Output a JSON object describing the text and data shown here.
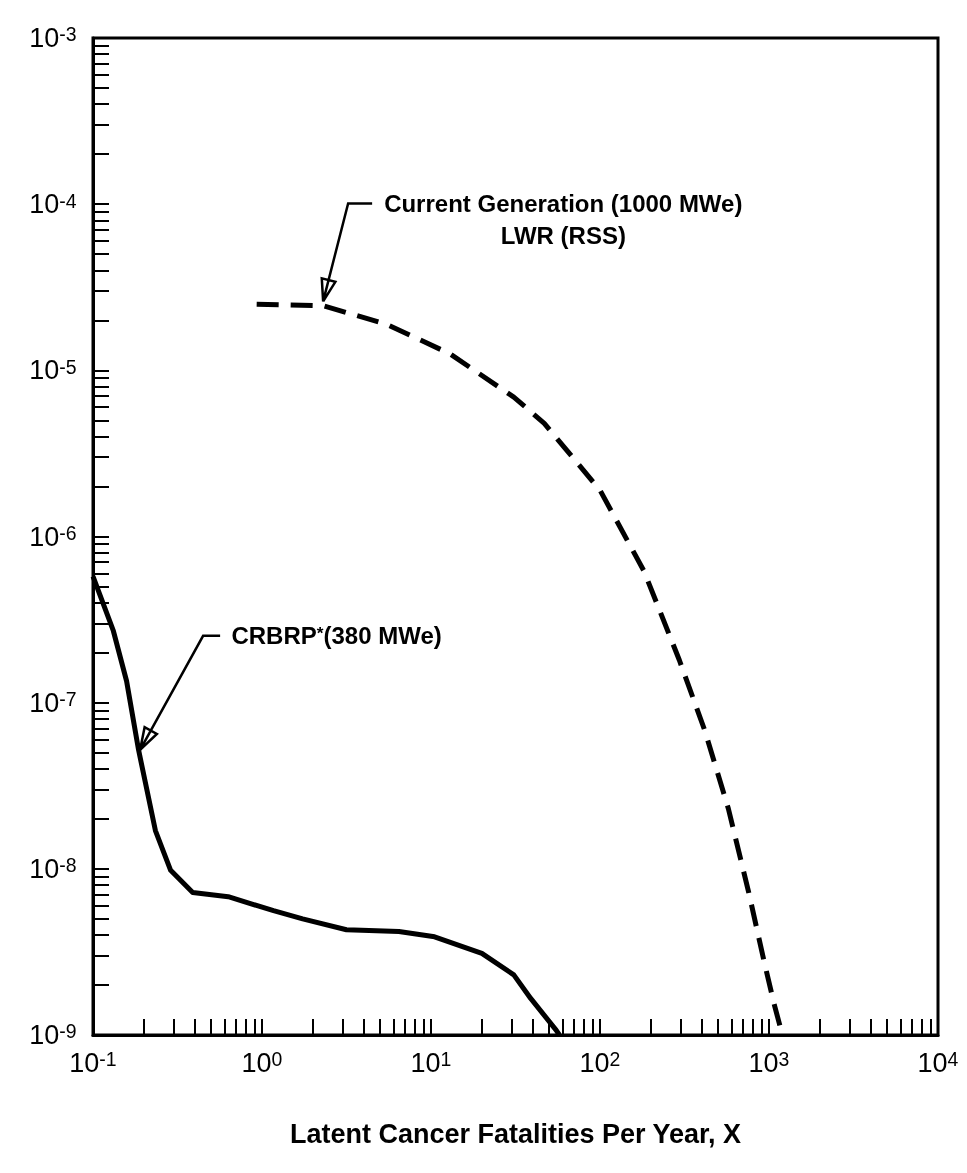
{
  "chart_data": {
    "type": "line",
    "xlabel": "Latent Cancer Fatalities Per Year, X",
    "log": "xy",
    "marker": "none",
    "xlim": [
      0.1,
      10000
    ],
    "ylim": [
      1e-09,
      0.001
    ],
    "xticks": [
      {
        "value": 0.1,
        "label": "10$^{-1}$"
      },
      {
        "value": 0.2,
        "label": null
      },
      {
        "value": 0.3,
        "label": null
      },
      {
        "value": 0.4,
        "label": null
      },
      {
        "value": 0.5,
        "label": null
      },
      {
        "value": 0.6,
        "label": null
      },
      {
        "value": 0.7,
        "label": null
      },
      {
        "value": 0.8,
        "label": null
      },
      {
        "value": 0.9,
        "label": null
      },
      {
        "value": 1,
        "label": "10$^{0}$"
      },
      {
        "value": 2,
        "label": null
      },
      {
        "value": 3,
        "label": null
      },
      {
        "value": 4,
        "label": null
      },
      {
        "value": 5,
        "label": null
      },
      {
        "value": 6,
        "label": null
      },
      {
        "value": 7,
        "label": null
      },
      {
        "value": 8,
        "label": null
      },
      {
        "value": 9,
        "label": null
      },
      {
        "value": 10,
        "label": "10$^{1}$"
      },
      {
        "value": 20,
        "label": null
      },
      {
        "value": 30,
        "label": null
      },
      {
        "value": 40,
        "label": null
      },
      {
        "value": 50,
        "label": null
      },
      {
        "value": 60,
        "label": null
      },
      {
        "value": 70,
        "label": null
      },
      {
        "value": 80,
        "label": null
      },
      {
        "value": 90,
        "label": null
      },
      {
        "value": 100,
        "label": "10$^{2}$"
      },
      {
        "value": 200,
        "label": null
      },
      {
        "value": 300,
        "label": null
      },
      {
        "value": 400,
        "label": null
      },
      {
        "value": 500,
        "label": null
      },
      {
        "value": 600,
        "label": null
      },
      {
        "value": 700,
        "label": null
      },
      {
        "value": 800,
        "label": null
      },
      {
        "value": 900,
        "label": null
      },
      {
        "value": 1000,
        "label": "10$^{3}$"
      },
      {
        "value": 2000,
        "label": null
      },
      {
        "value": 3000,
        "label": null
      },
      {
        "value": 4000,
        "label": null
      },
      {
        "value": 5000,
        "label": null
      },
      {
        "value": 6000,
        "label": null
      },
      {
        "value": 7000,
        "label": null
      },
      {
        "value": 8000,
        "label": null
      },
      {
        "value": 9000,
        "label": null
      },
      {
        "value": 10000,
        "label": "10$^{4}$"
      }
    ],
    "yticks": [
      {
        "value": 1e-09,
        "label": "10$^{-9}$"
      },
      {
        "value": 2e-09,
        "label": null
      },
      {
        "value": 3e-09,
        "label": null
      },
      {
        "value": 4e-09,
        "label": null
      },
      {
        "value": 5e-09,
        "label": null
      },
      {
        "value": 6e-09,
        "label": null
      },
      {
        "value": 7e-09,
        "label": null
      },
      {
        "value": 8e-09,
        "label": null
      },
      {
        "value": 9e-09,
        "label": null
      },
      {
        "value": 1e-08,
        "label": "10$^{-8}$"
      },
      {
        "value": 2e-08,
        "label": null
      },
      {
        "value": 3e-08,
        "label": null
      },
      {
        "value": 4e-08,
        "label": null
      },
      {
        "value": 5e-08,
        "label": null
      },
      {
        "value": 6e-08,
        "label": null
      },
      {
        "value": 7e-08,
        "label": null
      },
      {
        "value": 8e-08,
        "label": null
      },
      {
        "value": 9e-08,
        "label": null
      },
      {
        "value": 1e-07,
        "label": "10$^{-7}$"
      },
      {
        "value": 2e-07,
        "label": null
      },
      {
        "value": 3e-07,
        "label": null
      },
      {
        "value": 4e-07,
        "label": null
      },
      {
        "value": 5e-07,
        "label": null
      },
      {
        "value": 6e-07,
        "label": null
      },
      {
        "value": 7e-07,
        "label": null
      },
      {
        "value": 8e-07,
        "label": null
      },
      {
        "value": 9e-07,
        "label": null
      },
      {
        "value": 1e-06,
        "label": "10$^{-6}$"
      },
      {
        "value": 2e-06,
        "label": null
      },
      {
        "value": 3e-06,
        "label": null
      },
      {
        "value": 4e-06,
        "label": null
      },
      {
        "value": 5e-06,
        "label": null
      },
      {
        "value": 6e-06,
        "label": null
      },
      {
        "value": 7e-06,
        "label": null
      },
      {
        "value": 8e-06,
        "label": null
      },
      {
        "value": 9e-06,
        "label": null
      },
      {
        "value": 1e-05,
        "label": "10$^{-5}$"
      },
      {
        "value": 2e-05,
        "label": null
      },
      {
        "value": 3e-05,
        "label": null
      },
      {
        "value": 4e-05,
        "label": null
      },
      {
        "value": 5e-05,
        "label": null
      },
      {
        "value": 6e-05,
        "label": null
      },
      {
        "value": 7e-05,
        "label": null
      },
      {
        "value": 8e-05,
        "label": null
      },
      {
        "value": 9e-05,
        "label": null
      },
      {
        "value": 0.0001,
        "label": "10$^{-4}$"
      },
      {
        "value": 0.0002,
        "label": null
      },
      {
        "value": 0.0003,
        "label": null
      },
      {
        "value": 0.0004,
        "label": null
      },
      {
        "value": 0.0005,
        "label": null
      },
      {
        "value": 0.0006,
        "label": null
      },
      {
        "value": 0.0007,
        "label": null
      },
      {
        "value": 0.0008,
        "label": null
      },
      {
        "value": 0.0009,
        "label": null
      },
      {
        "value": 0.001,
        "label": "10$^{-3}$"
      }
    ],
    "series": [
      {
        "color": "#000000",
        "line_style": "solid",
        "x": [
          0.1,
          0.132,
          0.158,
          0.186,
          0.234,
          0.288,
          0.389,
          0.631,
          1.17,
          1.74,
          3.16,
          6.46,
          10.5,
          20,
          30.9,
          38.9,
          55,
          57.5
        ],
        "values": [
          5.75e-07,
          2.7e-07,
          1.35e-07,
          5.2e-08,
          1.7e-08,
          9.8e-09,
          7.2e-09,
          6.8e-09,
          5.6e-09,
          5e-09,
          4.3e-09,
          4.2e-09,
          3.9e-09,
          3.1e-09,
          2.3e-09,
          1.66e-09,
          1.07e-09,
          1e-09
        ]
      },
      {
        "color": "#000000",
        "line_style": "dashed",
        "x": [
          0.93,
          2.3,
          5.4,
          12.9,
          30.9,
          46.8,
          100,
          182,
          295,
          417,
          575,
          759,
          933,
          1070,
          1200
        ],
        "values": [
          2.5e-05,
          2.45e-05,
          1.9e-05,
          1.26e-05,
          6.9e-06,
          4.8e-06,
          1.9e-06,
          6.2e-07,
          1.8e-07,
          6.8e-08,
          2.3e-08,
          7.2e-09,
          2.8e-09,
          1.55e-09,
          1e-09
        ]
      }
    ],
    "annotations": [
      {
        "text": "Current Generation (1000 MWe)\nLWR (RSS)",
        "x": 2.3,
        "y": 2.6e-05
      },
      {
        "text": "CRBRP$^{*}$(380 MWe)",
        "x": 0.19,
        "y": 5.2e-08
      }
    ]
  }
}
